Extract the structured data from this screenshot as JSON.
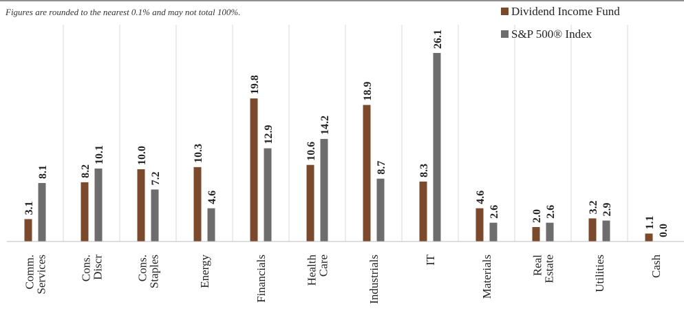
{
  "chart_data": {
    "type": "bar",
    "note": "Figures are rounded to the nearest 0.1% and may not total 100%.",
    "categories": [
      [
        "Comm.",
        "Services"
      ],
      [
        "Cons.",
        "Discr"
      ],
      [
        "Cons.",
        "Staples"
      ],
      [
        "Energy"
      ],
      [
        "Financials"
      ],
      [
        "Health",
        "Care"
      ],
      [
        "Industrials"
      ],
      [
        "IT"
      ],
      [
        "Materials"
      ],
      [
        "Real",
        "Estate"
      ],
      [
        "Utilities"
      ],
      [
        "Cash"
      ]
    ],
    "series": [
      {
        "name": "Dividend Income Fund",
        "color": "#7b4a2c",
        "values": [
          3.1,
          8.2,
          10.0,
          10.3,
          19.8,
          10.6,
          18.9,
          8.3,
          4.6,
          2.0,
          3.2,
          1.1
        ],
        "labels": [
          "3.1",
          "8.2",
          "10.0",
          "10.3",
          "19.8",
          "10.6",
          "18.9",
          "8.3",
          "4.6",
          "2.0",
          "3.2",
          "1.1"
        ]
      },
      {
        "name": "S&P 500® Index",
        "color": "#6d6d6d",
        "values": [
          8.1,
          10.1,
          7.2,
          4.6,
          12.9,
          14.2,
          8.7,
          26.1,
          2.6,
          2.6,
          2.9,
          0.0
        ],
        "labels": [
          "8.1",
          "10.1",
          "7.2",
          "4.6",
          "12.9",
          "14.2",
          "8.7",
          "26.1",
          "2.6",
          "2.6",
          "2.9",
          "0.0"
        ]
      }
    ],
    "ylim": [
      0,
      30
    ],
    "grid": "vertical separators",
    "legend": "top-right"
  }
}
